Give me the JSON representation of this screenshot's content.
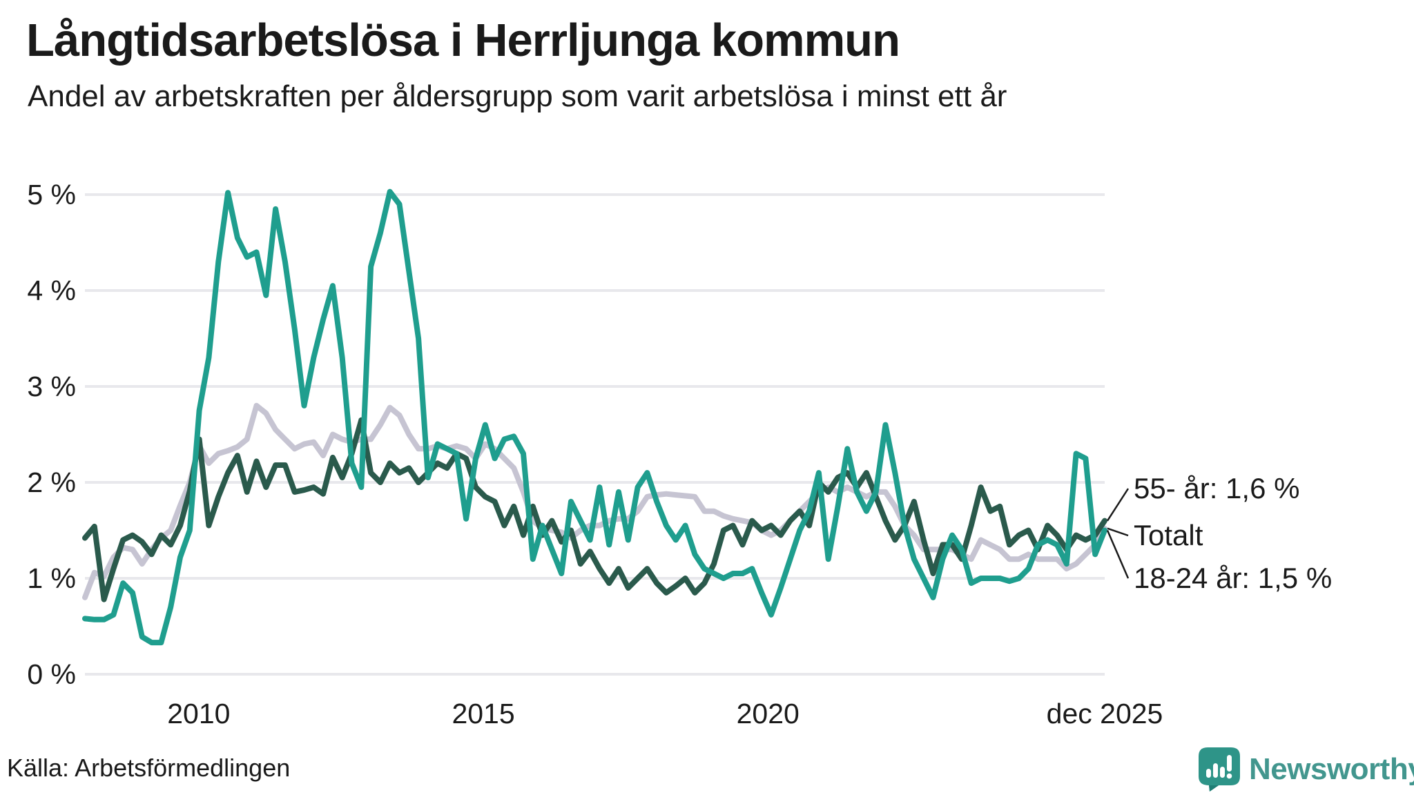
{
  "header": {
    "title": "Långtidsarbetslösa i Herrljunga kommun",
    "subtitle": "Andel av arbetskraften per åldersgrupp som varit arbetslösa i minst ett år"
  },
  "footer": {
    "source": "Källa: Arbetsförmedlingen",
    "brand": "Newsworthy"
  },
  "colors": {
    "teal": "#1F9E8E",
    "dark_green": "#2A5A4C",
    "light_gray": "#C6C4D2",
    "gridline": "#E8E8EC",
    "text": "#1a1a1a",
    "brand_teal": "#2E9488",
    "brand_teal_dark": "#1F7D74"
  },
  "chart_data": {
    "type": "line",
    "title": "Långtidsarbetslösa i Herrljunga kommun",
    "xlabel": "",
    "ylabel": "",
    "x_start": "2008-01",
    "x_end": "2025-12",
    "points_per_year": 6,
    "grid": true,
    "ylim": [
      0,
      5
    ],
    "y_ticks": [
      {
        "value": 0,
        "label": "0 %"
      },
      {
        "value": 1,
        "label": "1 %"
      },
      {
        "value": 2,
        "label": "2 %"
      },
      {
        "value": 3,
        "label": "3 %"
      },
      {
        "value": 4,
        "label": "4 %"
      },
      {
        "value": 5,
        "label": "5 %"
      }
    ],
    "x_ticks": [
      {
        "label": "2010",
        "month_index": 24
      },
      {
        "label": "2015",
        "month_index": 84
      },
      {
        "label": "2020",
        "month_index": 144
      },
      {
        "label": "dec 2025",
        "month_index": 215
      }
    ],
    "series": [
      {
        "name": "Totalt",
        "color_key": "light_gray",
        "end_label": "Totalt",
        "end_value": 1.52,
        "values": [
          0.8,
          1.06,
          1.02,
          1.22,
          1.32,
          1.3,
          1.15,
          1.3,
          1.42,
          1.5,
          1.76,
          2.0,
          2.38,
          2.2,
          2.3,
          2.33,
          2.37,
          2.45,
          2.8,
          2.72,
          2.55,
          2.45,
          2.35,
          2.4,
          2.42,
          2.28,
          2.5,
          2.45,
          2.42,
          2.45,
          2.45,
          2.6,
          2.78,
          2.7,
          2.5,
          2.35,
          2.35,
          2.38,
          2.35,
          2.38,
          2.35,
          2.25,
          2.4,
          2.35,
          2.25,
          2.15,
          1.9,
          1.6,
          1.52,
          1.5,
          1.48,
          1.42,
          1.5,
          1.55,
          1.55,
          1.6,
          1.62,
          1.62,
          1.7,
          1.85,
          1.87,
          1.88,
          1.87,
          1.86,
          1.85,
          1.7,
          1.7,
          1.65,
          1.62,
          1.6,
          1.58,
          1.5,
          1.45,
          1.5,
          1.6,
          1.7,
          1.8,
          1.9,
          1.95,
          1.9,
          1.95,
          1.9,
          1.85,
          1.9,
          1.9,
          1.75,
          1.55,
          1.45,
          1.3,
          1.3,
          1.3,
          1.3,
          1.25,
          1.2,
          1.4,
          1.35,
          1.3,
          1.2,
          1.2,
          1.25,
          1.2,
          1.2,
          1.2,
          1.1,
          1.15,
          1.25,
          1.35,
          1.52
        ]
      },
      {
        "name": "55- år",
        "color_key": "dark_green",
        "end_label": "55- år: 1,6 %",
        "end_value": 1.6,
        "values": [
          1.42,
          1.54,
          0.78,
          1.1,
          1.4,
          1.45,
          1.38,
          1.25,
          1.45,
          1.35,
          1.55,
          1.91,
          2.45,
          1.55,
          1.85,
          2.1,
          2.28,
          1.9,
          2.22,
          1.95,
          2.18,
          2.18,
          1.9,
          1.92,
          1.95,
          1.88,
          2.26,
          2.05,
          2.3,
          2.65,
          2.1,
          2.0,
          2.2,
          2.1,
          2.15,
          2.0,
          2.1,
          2.2,
          2.15,
          2.3,
          2.25,
          1.95,
          1.85,
          1.8,
          1.55,
          1.75,
          1.45,
          1.75,
          1.45,
          1.6,
          1.38,
          1.5,
          1.15,
          1.28,
          1.1,
          0.95,
          1.1,
          0.9,
          1.0,
          1.1,
          0.95,
          0.85,
          0.92,
          1.0,
          0.85,
          0.95,
          1.15,
          1.5,
          1.55,
          1.35,
          1.6,
          1.5,
          1.55,
          1.45,
          1.6,
          1.7,
          1.55,
          2.0,
          1.9,
          2.05,
          2.1,
          1.95,
          2.1,
          1.85,
          1.6,
          1.4,
          1.55,
          1.8,
          1.4,
          1.05,
          1.35,
          1.35,
          1.2,
          1.55,
          1.95,
          1.7,
          1.75,
          1.35,
          1.45,
          1.5,
          1.3,
          1.55,
          1.45,
          1.3,
          1.45,
          1.4,
          1.45,
          1.6
        ]
      },
      {
        "name": "18-24 år",
        "color_key": "teal",
        "end_label": "18-24 år: 1,5 %",
        "end_value": 1.5,
        "values": [
          0.58,
          0.57,
          0.57,
          0.62,
          0.95,
          0.85,
          0.39,
          0.33,
          0.33,
          0.7,
          1.22,
          1.5,
          2.75,
          3.3,
          4.3,
          5.02,
          4.55,
          4.35,
          4.4,
          3.95,
          4.85,
          4.3,
          3.6,
          2.8,
          3.3,
          3.7,
          4.05,
          3.3,
          2.2,
          1.95,
          4.25,
          4.6,
          5.03,
          4.9,
          4.2,
          3.5,
          2.05,
          2.4,
          2.35,
          2.3,
          1.62,
          2.25,
          2.6,
          2.25,
          2.45,
          2.48,
          2.3,
          1.2,
          1.55,
          1.3,
          1.05,
          1.8,
          1.6,
          1.4,
          1.95,
          1.35,
          1.9,
          1.4,
          1.95,
          2.1,
          1.8,
          1.55,
          1.4,
          1.55,
          1.25,
          1.1,
          1.05,
          1.0,
          1.05,
          1.05,
          1.1,
          0.85,
          0.62,
          0.9,
          1.2,
          1.5,
          1.7,
          2.1,
          1.2,
          1.75,
          2.35,
          1.9,
          1.7,
          1.9,
          2.6,
          2.1,
          1.55,
          1.2,
          1.0,
          0.8,
          1.2,
          1.45,
          1.3,
          0.95,
          1.0,
          1.0,
          1.0,
          0.97,
          1.0,
          1.1,
          1.35,
          1.4,
          1.35,
          1.15,
          2.3,
          2.25,
          1.25,
          1.5
        ]
      }
    ],
    "legend_position": "right-end-labels"
  }
}
